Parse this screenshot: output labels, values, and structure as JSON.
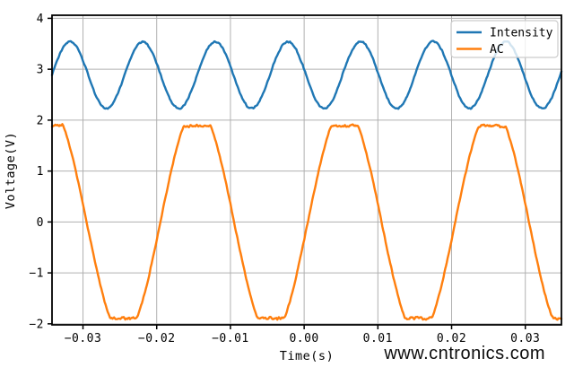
{
  "chart_data": {
    "type": "line",
    "title": "",
    "xlabel": "Time(s)",
    "ylabel": "Voltage(V)",
    "xlim": [
      -0.0342,
      0.0349
    ],
    "ylim": [
      -2.02,
      4.06
    ],
    "x_ticks": [
      -0.03,
      -0.02,
      -0.01,
      0.0,
      0.01,
      0.02,
      0.03
    ],
    "x_tick_labels": [
      "−0.03",
      "−0.02",
      "−0.01",
      "0.00",
      "0.01",
      "0.02",
      "0.03"
    ],
    "y_ticks": [
      -2,
      -1,
      0,
      1,
      2,
      3,
      4
    ],
    "y_tick_labels": [
      "−2",
      "−1",
      "0",
      "1",
      "2",
      "3",
      "4"
    ],
    "grid": true,
    "grid_color": "#b0b0b0",
    "spine_color": "#000000",
    "legend": {
      "position": "upper right",
      "frame_alpha": 0.8,
      "border_color": "#cccccc",
      "entries": [
        {
          "label": "Intensity",
          "color": "#1f77b4"
        },
        {
          "label": "AC",
          "color": "#ff7f0e"
        }
      ]
    },
    "series": [
      {
        "name": "Intensity",
        "color": "#1f77b4",
        "model": "noisy-sine",
        "offset_v": 2.885,
        "amplitude_v": 0.655,
        "frequency_hz": 101.5,
        "peak_time_s": -0.0022,
        "noise_v": 0.018,
        "peak_v": 3.54,
        "trough_v": 2.23
      },
      {
        "name": "AC",
        "color": "#ff7f0e",
        "model": "noisy-clipped-sine",
        "offset_v": 0,
        "amplitude_v": 2.25,
        "clip_v": 1.89,
        "frequency_hz": 50,
        "zero_cross_time_s": 0.0005,
        "noise_v": 0.02,
        "noise_at_clip_v": 0.035,
        "peak_v": 1.9,
        "trough_v": -1.9
      }
    ]
  },
  "watermark": {
    "text": "www.cntronics.com",
    "color": "#aed79c"
  }
}
